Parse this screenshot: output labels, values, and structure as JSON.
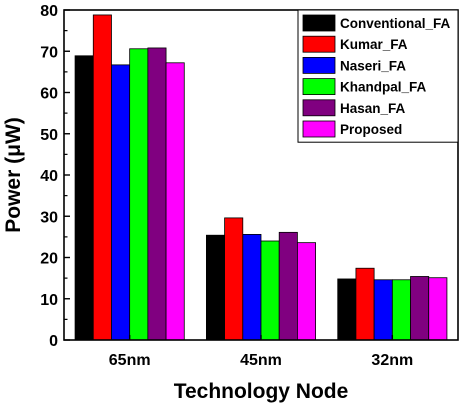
{
  "chart_data": {
    "type": "bar",
    "title": "",
    "xlabel": "Technology Node",
    "ylabel": "Power (μW)",
    "ylim": [
      0,
      80
    ],
    "yticks": [
      "0",
      "10",
      "20",
      "30",
      "40",
      "50",
      "60",
      "70",
      "80"
    ],
    "categories": [
      "65nm",
      "45nm",
      "32nm"
    ],
    "legend_position": "top-right",
    "grid": false,
    "series": [
      {
        "name": "Conventional_FA",
        "color": "#000000",
        "values": [
          68.9,
          25.4,
          14.8
        ]
      },
      {
        "name": "Kumar_FA",
        "color": "#ff0000",
        "values": [
          78.8,
          29.6,
          17.4
        ]
      },
      {
        "name": "Naseri_FA",
        "color": "#0000ff",
        "values": [
          66.7,
          25.6,
          14.6
        ]
      },
      {
        "name": "Khandpal_FA",
        "color": "#00ff00",
        "values": [
          70.6,
          24.0,
          14.6
        ]
      },
      {
        "name": "Hasan_FA",
        "color": "#800080",
        "values": [
          70.8,
          26.1,
          15.4
        ]
      },
      {
        "name": "Proposed",
        "color": "#ff00ff",
        "values": [
          67.2,
          23.6,
          15.1
        ]
      }
    ]
  }
}
